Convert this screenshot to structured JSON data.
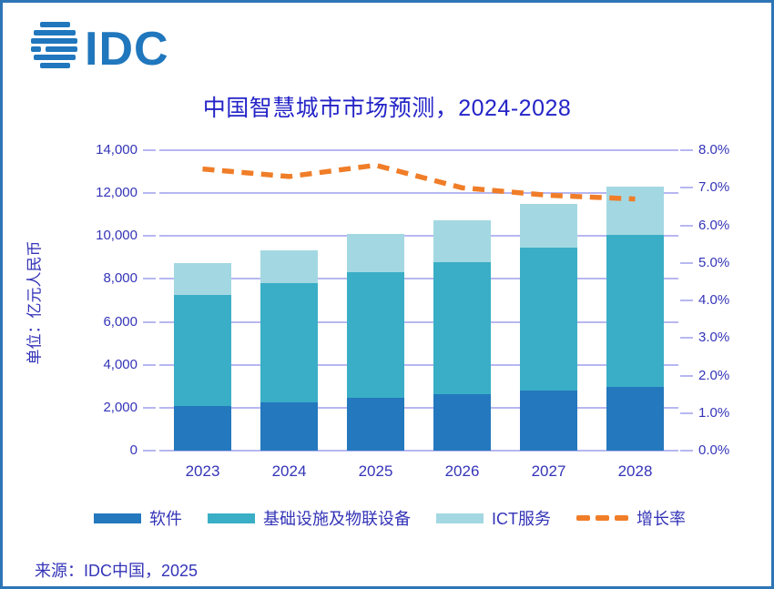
{
  "brand": {
    "logo_text": "IDC"
  },
  "title": "中国智慧城市市场预测，2024-2028",
  "source": "来源：IDC中国，2025",
  "colors": {
    "software": "#2478BD",
    "infrastructure": "#3AAEC6",
    "ict_services": "#A3D8E2",
    "growth_line": "#F07D28",
    "text_blue": "#3434B8",
    "title_blue": "#2424C8",
    "gridline": "#B7B7F1",
    "card_border": "#2E75B6",
    "logo_blue": "#2077BD"
  },
  "chart_data": {
    "type": "bar",
    "subtype": "stacked-bars-with-line",
    "title": "中国智慧城市市场预测，2024-2028",
    "categories": [
      "2023",
      "2024",
      "2025",
      "2026",
      "2027",
      "2028"
    ],
    "series": [
      {
        "name": "软件",
        "type": "bar",
        "color": "#2478BD",
        "values": [
          2100,
          2250,
          2450,
          2650,
          2800,
          2950
        ]
      },
      {
        "name": "基础设施及物联设备",
        "type": "bar",
        "color": "#3AAEC6",
        "values": [
          5150,
          5550,
          5850,
          6150,
          6650,
          7100
        ]
      },
      {
        "name": "ICT服务",
        "type": "bar",
        "color": "#A3D8E2",
        "values": [
          1500,
          1550,
          1800,
          1950,
          2050,
          2250
        ]
      },
      {
        "name": "增长率",
        "type": "line",
        "color": "#F07D28",
        "values_pct": [
          7.5,
          7.3,
          7.6,
          7.0,
          6.8,
          6.7
        ]
      }
    ],
    "stacked_totals": [
      8750,
      9350,
      10100,
      10750,
      11500,
      12300
    ],
    "left_axis": {
      "label": "单位：亿元人民币",
      "min": 0,
      "max": 14000,
      "step": 2000,
      "tick_labels_top_to_bottom": [
        "14,000",
        "12,000",
        "10,000",
        "8,000",
        "6,000",
        "4,000",
        "2,000",
        "0"
      ]
    },
    "right_axis": {
      "min": 0,
      "max": 8,
      "step": 1,
      "tick_labels_top_to_bottom": [
        "8.0%",
        "7.0%",
        "6.0%",
        "5.0%",
        "4.0%",
        "3.0%",
        "2.0%",
        "1.0%",
        "0.0%"
      ]
    },
    "grid": "horizontal",
    "legend_position": "bottom",
    "legend": [
      {
        "label": "软件",
        "swatch": "bar",
        "color": "#2478BD"
      },
      {
        "label": "基础设施及物联设备",
        "swatch": "bar",
        "color": "#3AAEC6"
      },
      {
        "label": "ICT服务",
        "swatch": "bar",
        "color": "#A3D8E2"
      },
      {
        "label": "增长率",
        "swatch": "dash",
        "color": "#F07D28"
      }
    ]
  }
}
